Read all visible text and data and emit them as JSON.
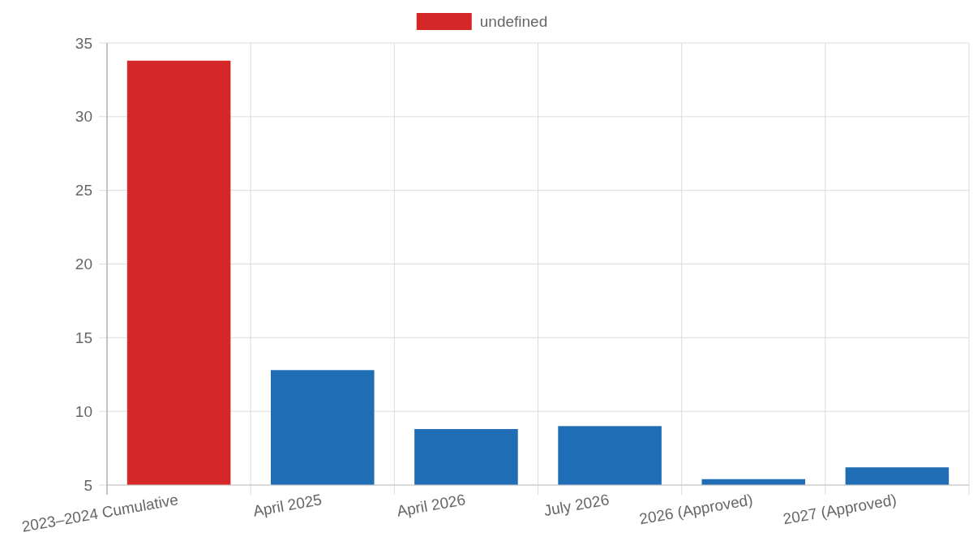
{
  "chart_data": {
    "type": "bar",
    "categories": [
      "2023–2024 Cumulative",
      "April 2025",
      "April 2026",
      "July 2026",
      "2026 (Approved)",
      "2027 (Approved)"
    ],
    "series": [
      {
        "name": "undefined",
        "color": "#d62728",
        "colors": [
          "#d62728",
          "#1f6db4",
          "#1f6db4",
          "#1f6db4",
          "#1f6db4",
          "#1f6db4"
        ],
        "values": [
          33.8,
          12.8,
          8.8,
          9.0,
          5.4,
          6.2
        ]
      }
    ],
    "ylim": [
      5,
      35
    ],
    "yticks": [
      5,
      10,
      15,
      20,
      25,
      30,
      35
    ],
    "grid": true,
    "legend": "top"
  }
}
